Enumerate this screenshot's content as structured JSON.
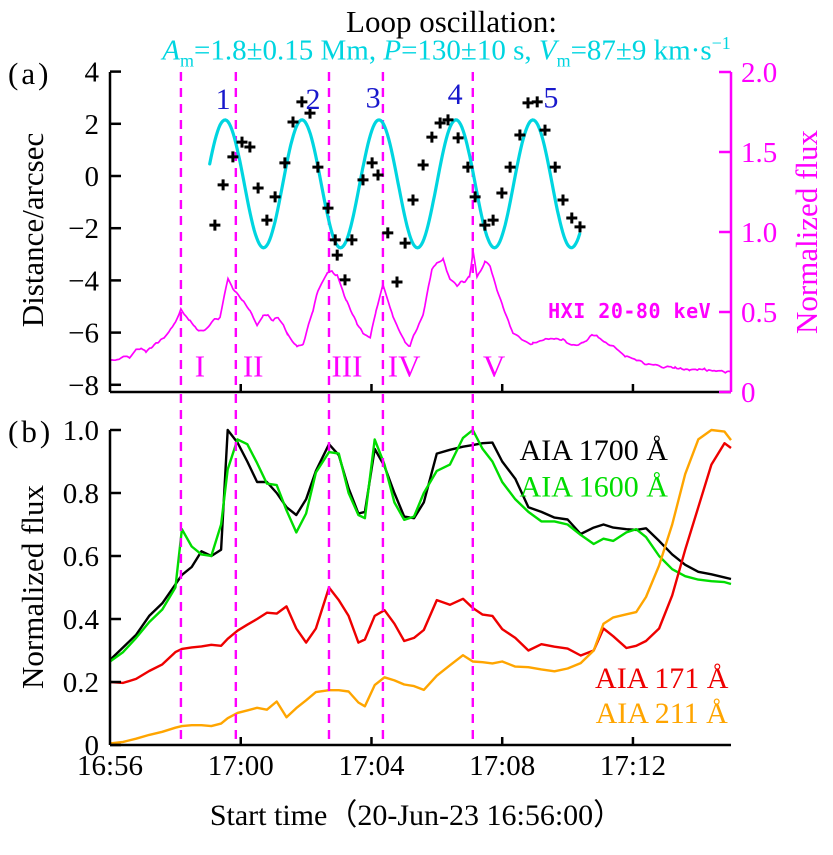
{
  "header": {
    "title": "Loop oscillation:",
    "subtitle_segments": [
      {
        "text": "A",
        "style": "italic"
      },
      {
        "text": "m",
        "style": "sub"
      },
      {
        "text": "=1.8±0.15 Mm, ",
        "style": ""
      },
      {
        "text": "P",
        "style": "italic"
      },
      {
        "text": "=130±10 s, ",
        "style": ""
      },
      {
        "text": "V",
        "style": "italic"
      },
      {
        "text": "m",
        "style": "sub"
      },
      {
        "text": "=87±9 km·s",
        "style": ""
      },
      {
        "text": "−1",
        "style": "sup"
      }
    ]
  },
  "colors": {
    "magenta": "#FF00FF",
    "cyan": "#00D5E0",
    "green": "#00DC00",
    "red": "#EE0000",
    "orange": "#FFA500",
    "blue": "#1818CC",
    "black": "#000000"
  },
  "panel_a": {
    "label": "(a)",
    "ylabel_left": "Distance/arcsec",
    "ylabel_right": "Normalized flux",
    "yticks_left": {
      "values": [
        4,
        2,
        0,
        -2,
        -4,
        -6,
        -8
      ],
      "labels": [
        "4",
        "2",
        "0",
        "−2",
        "−4",
        "−6",
        "−8"
      ]
    },
    "yticks_right": {
      "values": [
        2.0,
        1.5,
        1.0,
        0.5,
        0
      ],
      "labels": [
        "2.0",
        "1.5",
        "1.0",
        "0.5",
        "0"
      ]
    },
    "peak_numbers": [
      {
        "label": "1",
        "t": 3.46,
        "d": 2.95
      },
      {
        "label": "2",
        "t": 6.21,
        "d": 2.95
      },
      {
        "label": "3",
        "t": 8.05,
        "d": 3.0
      },
      {
        "label": "4",
        "t": 10.56,
        "d": 3.15
      },
      {
        "label": "5",
        "t": 13.49,
        "d": 3.0
      }
    ],
    "interval_labels": {
      "labels": [
        "I",
        "II",
        "III",
        "IV",
        "V"
      ],
      "t": [
        2.75,
        4.38,
        7.25,
        9.0,
        11.75
      ],
      "d": -7.3
    },
    "hxi_label": {
      "text": "HXI 20-80 keV",
      "t": 15.9,
      "v": 0.5
    }
  },
  "panel_b": {
    "label": "(b)",
    "ylabel": "Normalized flux",
    "yticks": {
      "values": [
        1.0,
        0.8,
        0.6,
        0.4,
        0.2,
        0
      ],
      "labels": [
        "1.0",
        "0.8",
        "0.6",
        "0.4",
        "0.2",
        "0"
      ]
    },
    "legends": [
      {
        "text": "AIA 1700 Å",
        "color": "#000000",
        "t": 14.8,
        "v": 0.937
      },
      {
        "text": "AIA 1600 Å",
        "color": "#00DC00",
        "t": 14.8,
        "v": 0.82
      },
      {
        "text": "AIA 171 Å",
        "color": "#EE0000",
        "t": 16.88,
        "v": 0.213
      },
      {
        "text": "AIA 211 Å",
        "color": "#FFA500",
        "t": 16.88,
        "v": 0.102
      }
    ]
  },
  "xaxis": {
    "ticks": [
      {
        "t": 0,
        "label": "16:56"
      },
      {
        "t": 4,
        "label": "17:00"
      },
      {
        "t": 8,
        "label": "17:04"
      },
      {
        "t": 12,
        "label": "17:08"
      },
      {
        "t": 16,
        "label": "17:12"
      }
    ],
    "xlabel": "Start time（20-Jun-23 16:56:00）"
  },
  "chart_data": {
    "type": "line",
    "x_unit": "minutes since 16:56:00",
    "x_range": [
      0,
      19
    ],
    "dashed_line_times": [
      2.17,
      3.85,
      6.7,
      8.35,
      11.1
    ],
    "panel_a": {
      "left_axis": {
        "label": "Distance/arcsec",
        "range": [
          -8.25,
          4
        ]
      },
      "right_axis": {
        "label": "Normalized flux",
        "range": [
          0,
          2
        ]
      },
      "oscillation_fit": {
        "shape": "sine",
        "color": "#00D5E0",
        "t_start": 3.05,
        "t_end": 14.38,
        "period_min": 2.355,
        "amplitude_arcsec": 2.45,
        "mean_arcsec": -0.3,
        "peak_times": [
          3.52,
          5.97,
          8.32,
          10.56,
          12.94
        ]
      },
      "loop_position_points": {
        "marker": "+",
        "color": "#000000",
        "axis": "left",
        "points": [
          [
            3.21,
            -1.88
          ],
          [
            3.46,
            -0.34
          ],
          [
            3.76,
            0.73
          ],
          [
            4.04,
            1.3
          ],
          [
            4.28,
            1.11
          ],
          [
            4.53,
            -0.46
          ],
          [
            4.8,
            -1.69
          ],
          [
            5.05,
            -0.8
          ],
          [
            5.35,
            0.5
          ],
          [
            5.6,
            2.07
          ],
          [
            5.87,
            2.84
          ],
          [
            6.12,
            2.41
          ],
          [
            6.36,
            0.34
          ],
          [
            6.67,
            -1.23
          ],
          [
            6.89,
            -2.45
          ],
          [
            6.95,
            -3.03
          ],
          [
            7.19,
            -3.98
          ],
          [
            7.4,
            -2.45
          ],
          [
            7.74,
            -0.15
          ],
          [
            8.02,
            0.5
          ],
          [
            8.2,
            0.04
          ],
          [
            8.5,
            -2.18
          ],
          [
            8.78,
            -4.06
          ],
          [
            9.03,
            -2.57
          ],
          [
            9.27,
            -0.92
          ],
          [
            9.58,
            0.42
          ],
          [
            9.85,
            1.49
          ],
          [
            10.1,
            2.03
          ],
          [
            10.34,
            2.15
          ],
          [
            10.65,
            1.46
          ],
          [
            10.95,
            0.34
          ],
          [
            11.17,
            -0.8
          ],
          [
            11.47,
            -1.88
          ],
          [
            11.72,
            -1.69
          ],
          [
            11.99,
            -0.65
          ],
          [
            12.24,
            0.34
          ],
          [
            12.54,
            1.57
          ],
          [
            12.79,
            2.8
          ],
          [
            13.07,
            2.84
          ],
          [
            13.31,
            1.76
          ],
          [
            13.62,
            0.34
          ],
          [
            13.86,
            -0.92
          ],
          [
            14.13,
            -1.61
          ],
          [
            14.38,
            -1.95
          ]
        ]
      },
      "hxi": {
        "name": "HXI 20-80 keV",
        "color": "#FF00FF",
        "axis": "right",
        "points": [
          [
            0.0,
            0.2
          ],
          [
            0.3,
            0.21
          ],
          [
            0.6,
            0.22
          ],
          [
            0.8,
            0.26
          ],
          [
            0.95,
            0.28
          ],
          [
            1.1,
            0.25
          ],
          [
            1.3,
            0.29
          ],
          [
            1.5,
            0.31
          ],
          [
            1.65,
            0.34
          ],
          [
            1.8,
            0.37
          ],
          [
            2.0,
            0.44
          ],
          [
            2.17,
            0.52
          ],
          [
            2.3,
            0.48
          ],
          [
            2.45,
            0.44
          ],
          [
            2.6,
            0.4
          ],
          [
            2.75,
            0.38
          ],
          [
            2.9,
            0.39
          ],
          [
            3.05,
            0.42
          ],
          [
            3.2,
            0.45
          ],
          [
            3.37,
            0.47
          ],
          [
            3.5,
            0.6
          ],
          [
            3.61,
            0.7
          ],
          [
            3.76,
            0.65
          ],
          [
            3.98,
            0.59
          ],
          [
            4.28,
            0.51
          ],
          [
            4.5,
            0.42
          ],
          [
            4.68,
            0.47
          ],
          [
            4.83,
            0.48
          ],
          [
            4.99,
            0.45
          ],
          [
            5.14,
            0.47
          ],
          [
            5.42,
            0.37
          ],
          [
            5.72,
            0.28
          ],
          [
            5.91,
            0.3
          ],
          [
            6.21,
            0.51
          ],
          [
            6.36,
            0.64
          ],
          [
            6.64,
            0.74
          ],
          [
            6.79,
            0.75
          ],
          [
            6.95,
            0.73
          ],
          [
            7.25,
            0.56
          ],
          [
            7.56,
            0.43
          ],
          [
            7.74,
            0.36
          ],
          [
            7.96,
            0.34
          ],
          [
            8.14,
            0.5
          ],
          [
            8.35,
            0.67
          ],
          [
            8.66,
            0.47
          ],
          [
            9.03,
            0.31
          ],
          [
            9.18,
            0.29
          ],
          [
            9.58,
            0.49
          ],
          [
            9.85,
            0.76
          ],
          [
            10.0,
            0.81
          ],
          [
            10.19,
            0.83
          ],
          [
            10.4,
            0.7
          ],
          [
            10.62,
            0.66
          ],
          [
            10.77,
            0.69
          ],
          [
            10.86,
            0.68
          ],
          [
            11.0,
            0.72
          ],
          [
            11.11,
            0.88
          ],
          [
            11.23,
            0.72
          ],
          [
            11.47,
            0.81
          ],
          [
            11.63,
            0.78
          ],
          [
            11.84,
            0.64
          ],
          [
            12.02,
            0.53
          ],
          [
            12.33,
            0.37
          ],
          [
            12.54,
            0.34
          ],
          [
            12.76,
            0.31
          ],
          [
            12.94,
            0.3
          ],
          [
            13.37,
            0.33
          ],
          [
            13.86,
            0.33
          ],
          [
            14.17,
            0.29
          ],
          [
            14.47,
            0.31
          ],
          [
            14.78,
            0.36
          ],
          [
            15.0,
            0.33
          ],
          [
            15.24,
            0.3
          ],
          [
            15.51,
            0.27
          ],
          [
            15.76,
            0.23
          ],
          [
            16.0,
            0.21
          ],
          [
            16.31,
            0.18
          ],
          [
            16.52,
            0.17
          ],
          [
            16.83,
            0.16
          ],
          [
            17.29,
            0.15
          ],
          [
            17.75,
            0.14
          ],
          [
            18.21,
            0.14
          ],
          [
            18.66,
            0.13
          ],
          [
            19.0,
            0.125
          ]
        ]
      }
    },
    "panel_b": {
      "axis": {
        "label": "Normalized flux",
        "range": [
          0,
          1
        ]
      },
      "t": [
        0,
        0.4,
        0.8,
        1.2,
        1.6,
        2.0,
        2.2,
        2.5,
        2.8,
        3.1,
        3.4,
        3.6,
        3.9,
        4.2,
        4.5,
        4.8,
        5.1,
        5.4,
        5.7,
        6.0,
        6.3,
        6.7,
        7.0,
        7.3,
        7.6,
        7.8,
        8.1,
        8.4,
        8.7,
        9.0,
        9.3,
        9.6,
        10.0,
        10.4,
        10.8,
        11.1,
        11.4,
        11.7,
        12.0,
        12.4,
        12.8,
        13.2,
        13.6,
        14.0,
        14.4,
        14.8,
        15.1,
        15.4,
        15.8,
        16.1,
        16.4,
        16.8,
        17.2,
        17.6,
        18.0,
        18.4,
        18.8,
        19.0
      ],
      "series": [
        {
          "name": "AIA 1700 Å",
          "color": "#000000",
          "values": [
            0.27,
            0.31,
            0.35,
            0.41,
            0.45,
            0.51,
            0.54,
            0.565,
            0.615,
            0.6,
            0.62,
            1.0,
            0.96,
            0.9,
            0.835,
            0.835,
            0.8,
            0.755,
            0.73,
            0.78,
            0.87,
            0.955,
            0.92,
            0.815,
            0.735,
            0.74,
            0.94,
            0.885,
            0.8,
            0.725,
            0.72,
            0.77,
            0.925,
            0.937,
            0.947,
            0.952,
            0.958,
            0.96,
            0.9,
            0.845,
            0.755,
            0.74,
            0.722,
            0.716,
            0.67,
            0.69,
            0.7,
            0.69,
            0.685,
            0.683,
            0.688,
            0.648,
            0.605,
            0.572,
            0.55,
            0.542,
            0.532,
            0.527
          ]
        },
        {
          "name": "AIA 1600 Å",
          "color": "#00DC00",
          "values": [
            0.265,
            0.295,
            0.34,
            0.39,
            0.43,
            0.5,
            0.685,
            0.63,
            0.605,
            0.6,
            0.7,
            0.875,
            0.97,
            0.955,
            0.895,
            0.83,
            0.825,
            0.745,
            0.675,
            0.735,
            0.865,
            0.93,
            0.925,
            0.8,
            0.73,
            0.72,
            0.97,
            0.89,
            0.77,
            0.715,
            0.725,
            0.8,
            0.87,
            0.89,
            0.975,
            1.0,
            0.94,
            0.9,
            0.835,
            0.78,
            0.74,
            0.71,
            0.71,
            0.7,
            0.667,
            0.638,
            0.655,
            0.648,
            0.675,
            0.685,
            0.66,
            0.6,
            0.558,
            0.536,
            0.525,
            0.52,
            0.517,
            0.511
          ]
        },
        {
          "name": "AIA 171 Å",
          "color": "#EE0000",
          "values": [
            0.2,
            0.197,
            0.21,
            0.235,
            0.256,
            0.295,
            0.305,
            0.31,
            0.313,
            0.318,
            0.315,
            0.337,
            0.363,
            0.382,
            0.4,
            0.42,
            0.417,
            0.44,
            0.37,
            0.325,
            0.37,
            0.5,
            0.46,
            0.41,
            0.325,
            0.335,
            0.41,
            0.428,
            0.385,
            0.33,
            0.34,
            0.365,
            0.46,
            0.445,
            0.464,
            0.435,
            0.414,
            0.41,
            0.368,
            0.34,
            0.3,
            0.32,
            0.312,
            0.306,
            0.284,
            0.3,
            0.37,
            0.345,
            0.308,
            0.315,
            0.33,
            0.37,
            0.475,
            0.62,
            0.755,
            0.89,
            0.958,
            0.943
          ]
        },
        {
          "name": "AIA 211 Å",
          "color": "#FFA500",
          "values": [
            0.005,
            0.01,
            0.02,
            0.032,
            0.042,
            0.055,
            0.06,
            0.063,
            0.063,
            0.06,
            0.068,
            0.085,
            0.102,
            0.11,
            0.118,
            0.112,
            0.138,
            0.088,
            0.117,
            0.142,
            0.168,
            0.174,
            0.174,
            0.17,
            0.135,
            0.123,
            0.19,
            0.215,
            0.205,
            0.192,
            0.187,
            0.175,
            0.22,
            0.253,
            0.285,
            0.265,
            0.263,
            0.259,
            0.265,
            0.249,
            0.247,
            0.24,
            0.234,
            0.243,
            0.26,
            0.3,
            0.385,
            0.405,
            0.415,
            0.422,
            0.47,
            0.57,
            0.7,
            0.86,
            0.97,
            1.0,
            0.995,
            0.968
          ]
        }
      ]
    }
  }
}
